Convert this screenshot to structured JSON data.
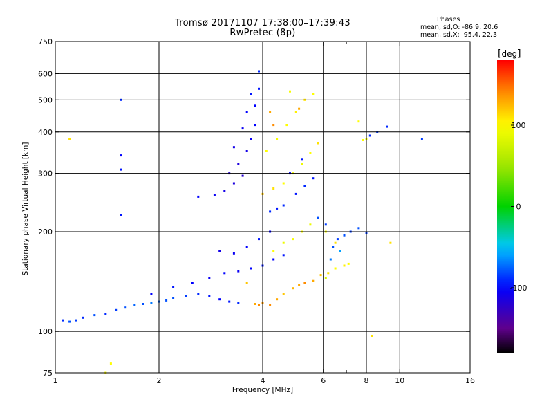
{
  "header": {
    "title_line1": "Tromsø 20171107 17:38:00–17:39:43",
    "title_line2": "RwPretec (8p)",
    "stats_heading": "Phases",
    "stats_o": "mean, sd,O: -86.9, 20.6",
    "stats_x": "mean, sd,X:  95.4, 22.3"
  },
  "colorbar": {
    "unit": "deg",
    "ticks": [
      100,
      0,
      -100
    ],
    "range": [
      -180,
      180
    ]
  },
  "chart_data": {
    "type": "scatter",
    "title": "Tromsø 20171107 17:38:00–17:39:43",
    "subtitle": "RwPretec (8p)",
    "xlabel": "Frequency [MHz]",
    "ylabel": "Stationary phase Virtual Height [km]",
    "x_scale": "log",
    "y_scale": "log",
    "xlim": [
      1,
      16
    ],
    "ylim": [
      75,
      750
    ],
    "x_ticks": [
      1,
      2,
      4,
      6,
      8,
      10,
      16
    ],
    "x_tick_labels": [
      "1",
      "2",
      "4",
      "6",
      "8",
      "10",
      "16"
    ],
    "x_minor_ticks": [
      7,
      9
    ],
    "y_ticks": [
      75,
      100,
      200,
      300,
      400,
      500,
      600,
      750
    ],
    "y_tick_labels": [
      "75",
      "100",
      "200",
      "300",
      "400",
      "500",
      "600",
      "750"
    ],
    "x_grid": [
      2,
      4,
      6,
      8,
      10
    ],
    "y_grid": [
      100,
      200,
      300,
      400,
      500,
      600
    ],
    "grid": true,
    "color_scale": "phase_deg",
    "series": [
      {
        "points": [
          [
            1.05,
            108,
            -90
          ],
          [
            1.1,
            107,
            -80
          ],
          [
            1.15,
            108,
            -85
          ],
          [
            1.2,
            110,
            -90
          ],
          [
            1.3,
            112,
            -80
          ],
          [
            1.4,
            113,
            -90
          ],
          [
            1.5,
            116,
            -85
          ],
          [
            1.6,
            118,
            -80
          ],
          [
            1.7,
            120,
            -75
          ],
          [
            1.8,
            121,
            -80
          ],
          [
            1.9,
            122,
            -70
          ],
          [
            2.0,
            123,
            -75
          ],
          [
            2.1,
            124,
            -80
          ],
          [
            2.2,
            126,
            -80
          ],
          [
            2.4,
            128,
            -85
          ],
          [
            2.6,
            130,
            -90
          ],
          [
            2.8,
            128,
            -95
          ],
          [
            3.0,
            125,
            -100
          ],
          [
            3.2,
            123,
            -95
          ],
          [
            3.4,
            122,
            -90
          ],
          [
            1.9,
            130,
            -100
          ],
          [
            2.2,
            136,
            -95
          ],
          [
            2.5,
            140,
            -100
          ],
          [
            2.8,
            145,
            -105
          ],
          [
            3.1,
            150,
            -100
          ],
          [
            3.4,
            152,
            -105
          ],
          [
            3.7,
            155,
            -100
          ],
          [
            4.0,
            158,
            -95
          ],
          [
            4.3,
            165,
            -100
          ],
          [
            4.6,
            170,
            -95
          ],
          [
            3.0,
            175,
            -110
          ],
          [
            3.3,
            172,
            -105
          ],
          [
            3.6,
            180,
            -100
          ],
          [
            3.9,
            190,
            -95
          ],
          [
            4.2,
            200,
            -100
          ],
          [
            2.6,
            255,
            -100
          ],
          [
            2.9,
            258,
            -105
          ],
          [
            3.1,
            265,
            -110
          ],
          [
            3.3,
            280,
            -115
          ],
          [
            3.5,
            295,
            -120
          ],
          [
            3.2,
            300,
            -120
          ],
          [
            3.4,
            320,
            -115
          ],
          [
            3.6,
            350,
            -110
          ],
          [
            3.7,
            380,
            -105
          ],
          [
            3.8,
            420,
            -100
          ],
          [
            3.8,
            480,
            -100
          ],
          [
            3.9,
            540,
            -95
          ],
          [
            3.9,
            610,
            -90
          ],
          [
            3.3,
            360,
            -110
          ],
          [
            3.5,
            410,
            -105
          ],
          [
            3.6,
            460,
            -100
          ],
          [
            3.7,
            520,
            -95
          ],
          [
            4.2,
            230,
            -90
          ],
          [
            4.4,
            235,
            -95
          ],
          [
            4.6,
            240,
            -90
          ],
          [
            5.0,
            260,
            -95
          ],
          [
            5.3,
            275,
            -90
          ],
          [
            5.6,
            290,
            -95
          ],
          [
            4.8,
            300,
            -100
          ],
          [
            5.2,
            330,
            -95
          ],
          [
            6.4,
            180,
            -80
          ],
          [
            6.6,
            190,
            -85
          ],
          [
            6.9,
            195,
            -80
          ],
          [
            7.2,
            200,
            -85
          ],
          [
            7.6,
            205,
            -80
          ],
          [
            8.0,
            198,
            -85
          ],
          [
            8.2,
            390,
            -90
          ],
          [
            8.6,
            400,
            -85
          ],
          [
            9.2,
            415,
            -90
          ],
          [
            11.6,
            380,
            -85
          ],
          [
            6.3,
            165,
            -70
          ],
          [
            6.7,
            175,
            -60
          ],
          [
            5.8,
            220,
            -80
          ],
          [
            6.1,
            210,
            -85
          ],
          [
            1.55,
            500,
            -90
          ],
          [
            1.55,
            340,
            -100
          ],
          [
            1.55,
            308,
            -95
          ],
          [
            1.55,
            224,
            -95
          ]
        ]
      },
      {
        "points": [
          [
            3.8,
            121,
            130
          ],
          [
            3.9,
            120,
            140
          ],
          [
            4.0,
            122,
            135
          ],
          [
            4.2,
            120,
            140
          ],
          [
            4.4,
            125,
            130
          ],
          [
            4.6,
            130,
            120
          ],
          [
            4.9,
            135,
            125
          ],
          [
            5.1,
            138,
            130
          ],
          [
            5.3,
            140,
            140
          ],
          [
            5.6,
            142,
            130
          ],
          [
            5.9,
            148,
            120
          ],
          [
            6.2,
            150,
            110
          ],
          [
            6.5,
            155,
            100
          ],
          [
            6.9,
            158,
            105
          ],
          [
            7.1,
            160,
            100
          ],
          [
            4.3,
            175,
            100
          ],
          [
            4.6,
            185,
            90
          ],
          [
            4.9,
            190,
            95
          ],
          [
            5.2,
            200,
            100
          ],
          [
            5.5,
            210,
            90
          ],
          [
            6.1,
            200,
            95
          ],
          [
            6.5,
            185,
            110
          ],
          [
            4.0,
            260,
            120
          ],
          [
            4.3,
            270,
            110
          ],
          [
            4.6,
            280,
            100
          ],
          [
            4.9,
            300,
            95
          ],
          [
            5.2,
            320,
            90
          ],
          [
            5.5,
            345,
            100
          ],
          [
            5.8,
            370,
            110
          ],
          [
            4.1,
            350,
            100
          ],
          [
            4.4,
            380,
            95
          ],
          [
            4.7,
            420,
            100
          ],
          [
            5.0,
            460,
            105
          ],
          [
            5.3,
            500,
            110
          ],
          [
            5.6,
            520,
            100
          ],
          [
            4.8,
            530,
            95
          ],
          [
            5.1,
            470,
            130
          ],
          [
            4.3,
            420,
            140
          ],
          [
            4.2,
            460,
            130
          ],
          [
            3.6,
            140,
            120
          ],
          [
            7.8,
            378,
            100
          ],
          [
            8.0,
            380,
            95
          ],
          [
            7.6,
            430,
            100
          ],
          [
            6.1,
            145,
            80
          ],
          [
            8.3,
            97,
            110
          ],
          [
            1.1,
            380,
            110
          ],
          [
            1.45,
            80,
            100
          ],
          [
            1.4,
            75,
            100
          ],
          [
            9.4,
            185,
            110
          ]
        ]
      }
    ]
  }
}
